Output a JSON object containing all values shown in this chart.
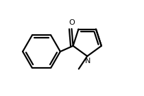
{
  "background_color": "#ffffff",
  "line_color": "#000000",
  "line_width": 1.6,
  "dbo": 0.038,
  "font_size_N": 8,
  "font_size_O": 8,
  "figsize": [
    2.1,
    1.4
  ],
  "dpi": 100,
  "xlim": [
    -0.85,
    0.95
  ],
  "ylim": [
    -0.72,
    0.62
  ]
}
